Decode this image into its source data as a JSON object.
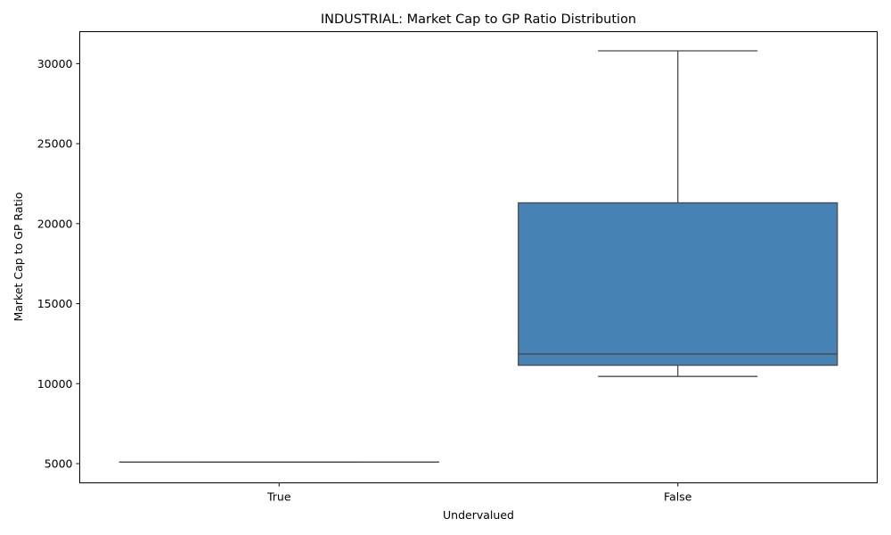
{
  "chart_data": {
    "type": "box",
    "title": "INDUSTRIAL: Market Cap to GP Ratio Distribution",
    "xlabel": "Undervalued",
    "ylabel": "Market Cap to GP Ratio",
    "ylim": [
      3800,
      32000
    ],
    "yticks": [
      5000,
      10000,
      15000,
      20000,
      25000,
      30000
    ],
    "grid": false,
    "color": "#4682b4",
    "categories": [
      "True",
      "False"
    ],
    "boxes": [
      {
        "category": "True",
        "min": 5100,
        "q1": 5100,
        "median": 5100,
        "q3": 5100,
        "max": 5100
      },
      {
        "category": "False",
        "min": 10450,
        "q1": 11150,
        "median": 11850,
        "q3": 21300,
        "max": 30800
      }
    ]
  }
}
